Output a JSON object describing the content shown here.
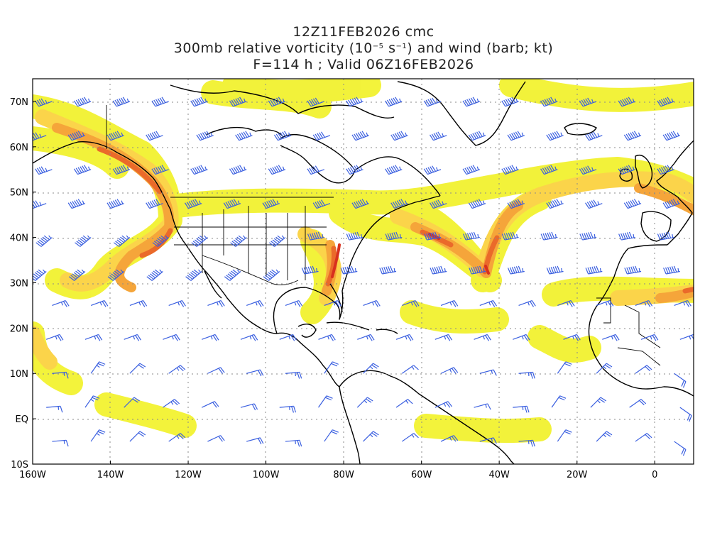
{
  "title": {
    "line1": "12Z11FEB2026 cmc",
    "line2_pre": "300mb relative vorticity (10",
    "line2_exp1": "−5",
    "line2_mid": " s",
    "line2_exp2": "−1",
    "line2_post": ") and wind (barb; kt)",
    "line3": "F=114 h ; Valid 06Z16FEB2026"
  },
  "axes": {
    "x_labels": [
      "160W",
      "140W",
      "120W",
      "100W",
      "80W",
      "60W",
      "40W",
      "20W",
      "0"
    ],
    "y_labels": [
      "70N",
      "60N",
      "50N",
      "40N",
      "30N",
      "20N",
      "10N",
      "EQ",
      "10S"
    ],
    "lon_range": [
      -160,
      10
    ],
    "lat_range": [
      -10,
      75
    ]
  },
  "colors": {
    "shade_light": "#f2f230",
    "shade_mid": "#fbd44a",
    "shade_orange": "#f5a53a",
    "shade_dark": "#ea6a2a",
    "shade_max": "#d8301e",
    "barb": "#3a5fe0",
    "coast": "#000000",
    "grid": "#8a8a8a"
  }
}
